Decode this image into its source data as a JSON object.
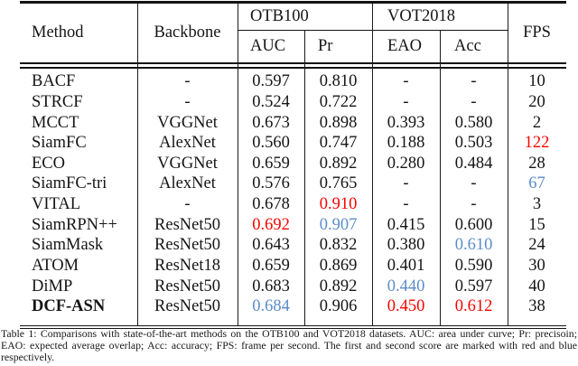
{
  "colors": {
    "first_place": "#f80400",
    "second_place": "#5b8dc9",
    "text": "#151515"
  },
  "table": {
    "header": {
      "method": "Method",
      "backbone": "Backbone",
      "group_otb": "OTB100",
      "group_vot": "VOT2018",
      "auc": "AUC",
      "pr": "Pr",
      "eao": "EAO",
      "acc": "Acc",
      "fps": "FPS"
    },
    "rows": [
      {
        "cells": [
          "BACF",
          "-",
          "0.597",
          "0.810",
          "-",
          "-",
          "10"
        ],
        "styles": [
          null,
          null,
          null,
          null,
          null,
          null,
          null
        ],
        "bold_method": false
      },
      {
        "cells": [
          "STRCF",
          "-",
          "0.524",
          "0.722",
          "-",
          "-",
          "20"
        ],
        "styles": [
          null,
          null,
          null,
          null,
          null,
          null,
          null
        ],
        "bold_method": false
      },
      {
        "cells": [
          "MCCT",
          "VGGNet",
          "0.673",
          "0.898",
          "0.393",
          "0.580",
          "2"
        ],
        "styles": [
          null,
          null,
          null,
          null,
          null,
          null,
          null
        ],
        "bold_method": false
      },
      {
        "cells": [
          "SiamFC",
          "AlexNet",
          "0.560",
          "0.747",
          "0.188",
          "0.503",
          "122"
        ],
        "styles": [
          null,
          null,
          null,
          null,
          null,
          null,
          "red"
        ],
        "bold_method": false
      },
      {
        "cells": [
          "ECO",
          "VGGNet",
          "0.659",
          "0.892",
          "0.280",
          "0.484",
          "28"
        ],
        "styles": [
          null,
          null,
          null,
          null,
          null,
          null,
          null
        ],
        "bold_method": false
      },
      {
        "cells": [
          "SiamFC-tri",
          "AlexNet",
          "0.576",
          "0.765",
          "-",
          "-",
          "67"
        ],
        "styles": [
          null,
          null,
          null,
          null,
          null,
          null,
          "blue"
        ],
        "bold_method": false
      },
      {
        "cells": [
          "VITAL",
          "-",
          "0.678",
          "0.910",
          "-",
          "-",
          "3"
        ],
        "styles": [
          null,
          null,
          null,
          "red",
          null,
          null,
          null
        ],
        "bold_method": false
      },
      {
        "cells": [
          "SiamRPN++",
          "ResNet50",
          "0.692",
          "0.907",
          "0.415",
          "0.600",
          "15"
        ],
        "styles": [
          null,
          null,
          "red",
          "blue",
          null,
          null,
          null
        ],
        "bold_method": false
      },
      {
        "cells": [
          "SiamMask",
          "ResNet50",
          "0.643",
          "0.832",
          "0.380",
          "0.610",
          "24"
        ],
        "styles": [
          null,
          null,
          null,
          null,
          null,
          "blue",
          null
        ],
        "bold_method": false
      },
      {
        "cells": [
          "ATOM",
          "ResNet18",
          "0.659",
          "0.869",
          "0.401",
          "0.590",
          "30"
        ],
        "styles": [
          null,
          null,
          null,
          null,
          null,
          null,
          null
        ],
        "bold_method": false
      },
      {
        "cells": [
          "DiMP",
          "ResNet50",
          "0.683",
          "0.892",
          "0.440",
          "0.597",
          "40"
        ],
        "styles": [
          null,
          null,
          null,
          null,
          "blue",
          null,
          null
        ],
        "bold_method": false
      },
      {
        "cells": [
          "DCF-ASN",
          "ResNet50",
          "0.684",
          "0.906",
          "0.450",
          "0.612",
          "38"
        ],
        "styles": [
          null,
          null,
          "blue",
          null,
          "red",
          "red",
          null
        ],
        "bold_method": true
      }
    ]
  },
  "caption": {
    "lines": [
      "Table 1: Comparisons with state-of-the-art methods on the OTB100 and VOT2018 datasets.  AUC: area under curve; Pr: precisoin;",
      "EAO: expected average overlap; Acc: accuracy; FPS: frame per second. The first and second score are marked with red and blue",
      "respectively."
    ]
  }
}
